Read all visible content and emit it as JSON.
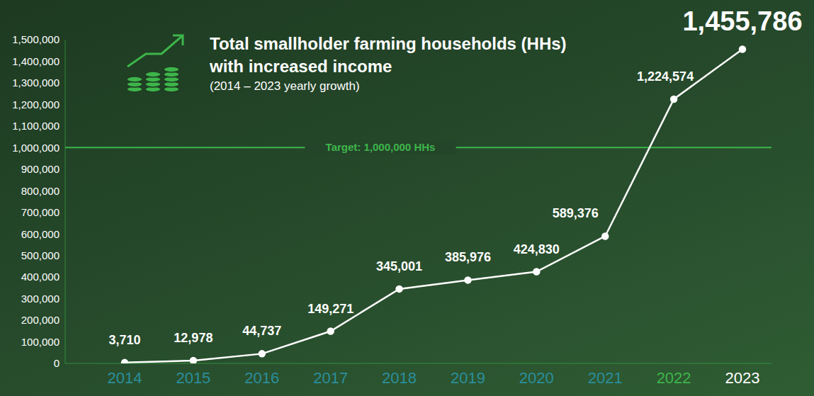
{
  "chart_data": {
    "type": "line",
    "title": "Total smallholder farming households (HHs) with increased income",
    "subtitle": "(2014 – 2023 yearly growth)",
    "categories": [
      "2014",
      "2015",
      "2016",
      "2017",
      "2018",
      "2019",
      "2020",
      "2021",
      "2022",
      "2023"
    ],
    "values": [
      3710,
      12978,
      44737,
      149271,
      345001,
      385976,
      424830,
      589376,
      1224574,
      1455786
    ],
    "value_labels": [
      "3,710",
      "12,978",
      "44,737",
      "149,271",
      "345,001",
      "385,976",
      "424,830",
      "589,376",
      "1,224,574",
      "1,455,786"
    ],
    "data_labels": true,
    "color": "#ffffff",
    "marker": "circle",
    "ylim": [
      0,
      1500000
    ],
    "yticks": [
      0,
      {
        "value": 100000,
        "label": "100,000"
      },
      {
        "value": 200000,
        "label": "200,000"
      },
      {
        "value": 300000,
        "label": "300,000"
      },
      {
        "value": 400000,
        "label": "400,000"
      },
      {
        "value": 500000,
        "label": "500,000"
      },
      {
        "value": 600000,
        "label": "600,000"
      },
      {
        "value": 700000,
        "label": "700,000"
      },
      {
        "value": 800000,
        "label": "800,000"
      },
      {
        "value": 900000,
        "label": "900,000"
      },
      {
        "value": 1000000,
        "label": "1,000,000"
      },
      {
        "value": 1100000,
        "label": "1,100,000"
      },
      {
        "value": 1200000,
        "label": "1,200,000"
      },
      {
        "value": 1300000,
        "label": "1,300,000"
      },
      {
        "value": 1400000,
        "label": "1,400,000"
      },
      {
        "value": 1500000,
        "label": "1,500,000"
      }
    ],
    "annotations": [
      {
        "text": "Target: 1,000,000 HHs",
        "y": 1000000,
        "color": "#3db54a"
      }
    ],
    "grid": false
  }
}
